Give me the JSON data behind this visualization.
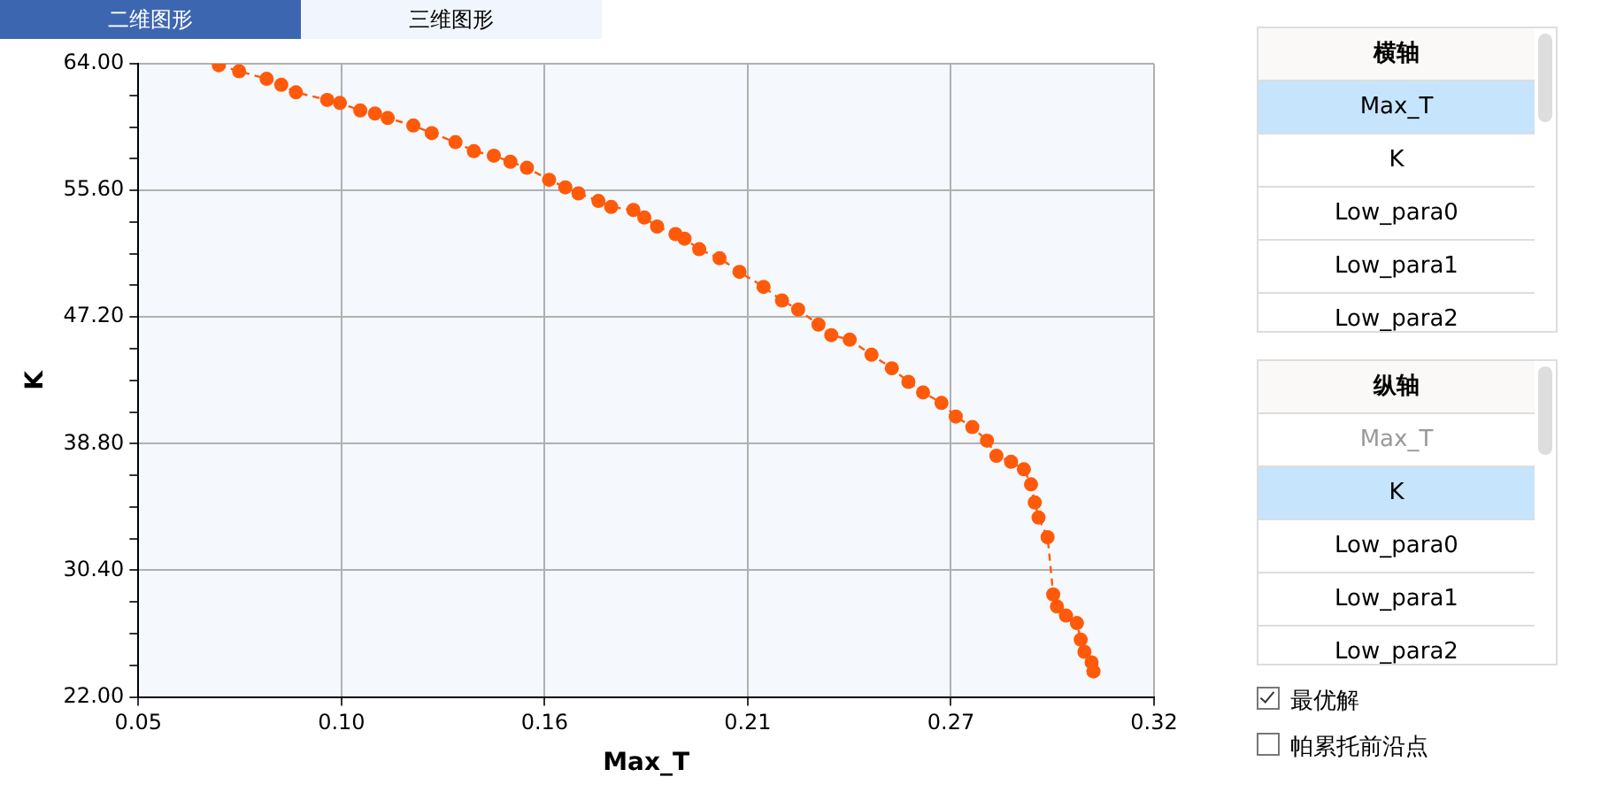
{
  "chart_data": {
    "type": "line",
    "xlabel": "Max_T",
    "ylabel": "K",
    "marker": "circle",
    "line_style": "dashed",
    "grid": true,
    "xlim": [
      0.05,
      0.32
    ],
    "xticks": [
      {
        "value": 0.05,
        "label": "0.05"
      },
      {
        "value": 0.104,
        "label": "0.10"
      },
      {
        "value": 0.158,
        "label": "0.16"
      },
      {
        "value": 0.212,
        "label": "0.21"
      },
      {
        "value": 0.266,
        "label": "0.27"
      },
      {
        "value": 0.32,
        "label": "0.32"
      }
    ],
    "ylim": [
      22,
      64
    ],
    "yticks": [
      {
        "value": 22,
        "label": "22.00"
      },
      {
        "value": 24.1,
        "label": null
      },
      {
        "value": 26.2,
        "label": null
      },
      {
        "value": 28.3,
        "label": null
      },
      {
        "value": 30.4,
        "label": "30.40"
      },
      {
        "value": 32.5,
        "label": null
      },
      {
        "value": 34.6,
        "label": null
      },
      {
        "value": 36.7,
        "label": null
      },
      {
        "value": 38.8,
        "label": "38.80"
      },
      {
        "value": 40.9,
        "label": null
      },
      {
        "value": 43,
        "label": null
      },
      {
        "value": 45.1,
        "label": null
      },
      {
        "value": 47.2,
        "label": "47.20"
      },
      {
        "value": 49.3,
        "label": null
      },
      {
        "value": 51.4,
        "label": null
      },
      {
        "value": 53.5,
        "label": null
      },
      {
        "value": 55.6,
        "label": "55.60"
      },
      {
        "value": 57.7,
        "label": null
      },
      {
        "value": 59.8,
        "label": null
      },
      {
        "value": 61.9,
        "label": null
      },
      {
        "value": 64,
        "label": "64.00"
      }
    ],
    "x": [
      0.0714,
      0.0768,
      0.0841,
      0.088,
      0.0919,
      0.1002,
      0.1036,
      0.109,
      0.1129,
      0.1163,
      0.1231,
      0.128,
      0.1343,
      0.1392,
      0.1445,
      0.1489,
      0.1533,
      0.1592,
      0.1635,
      0.167,
      0.1723,
      0.1757,
      0.1816,
      0.1845,
      0.1879,
      0.1928,
      0.1952,
      0.1991,
      0.2045,
      0.2098,
      0.2162,
      0.2211,
      0.2254,
      0.2308,
      0.2342,
      0.2391,
      0.2449,
      0.2503,
      0.2547,
      0.2586,
      0.2635,
      0.2673,
      0.2717,
      0.2756,
      0.2781,
      0.282,
      0.2854,
      0.2873,
      0.2883,
      0.2893,
      0.2917,
      0.2932,
      0.2942,
      0.2966,
      0.2995,
      0.3005,
      0.3015,
      0.3034,
      0.3039
    ],
    "series": [
      {
        "color": "#ff5a0a",
        "values": [
          63.9,
          63.5,
          63.0,
          62.6,
          62.1,
          61.6,
          61.4,
          60.9,
          60.7,
          60.4,
          59.9,
          59.4,
          58.8,
          58.2,
          57.9,
          57.5,
          57.1,
          56.3,
          55.8,
          55.4,
          54.9,
          54.5,
          54.3,
          53.8,
          53.2,
          52.7,
          52.4,
          51.7,
          51.1,
          50.2,
          49.2,
          48.3,
          47.7,
          46.7,
          46.0,
          45.7,
          44.7,
          43.8,
          42.9,
          42.2,
          41.5,
          40.6,
          39.9,
          39.0,
          38.0,
          37.6,
          37.1,
          36.1,
          34.9,
          33.9,
          32.6,
          28.8,
          28.0,
          27.4,
          26.9,
          25.8,
          25.0,
          24.3,
          23.7
        ]
      }
    ],
    "annotations": [
      "二维图形",
      "三维图形",
      "横轴",
      "Max_T",
      "K",
      "Low_para0",
      "Low_para1",
      "Low_para2",
      "纵轴",
      "Max_T",
      "K",
      "Low_para0",
      "Low_para1",
      "Low_para2",
      "最优解",
      "帕累托前沿点"
    ]
  }
}
